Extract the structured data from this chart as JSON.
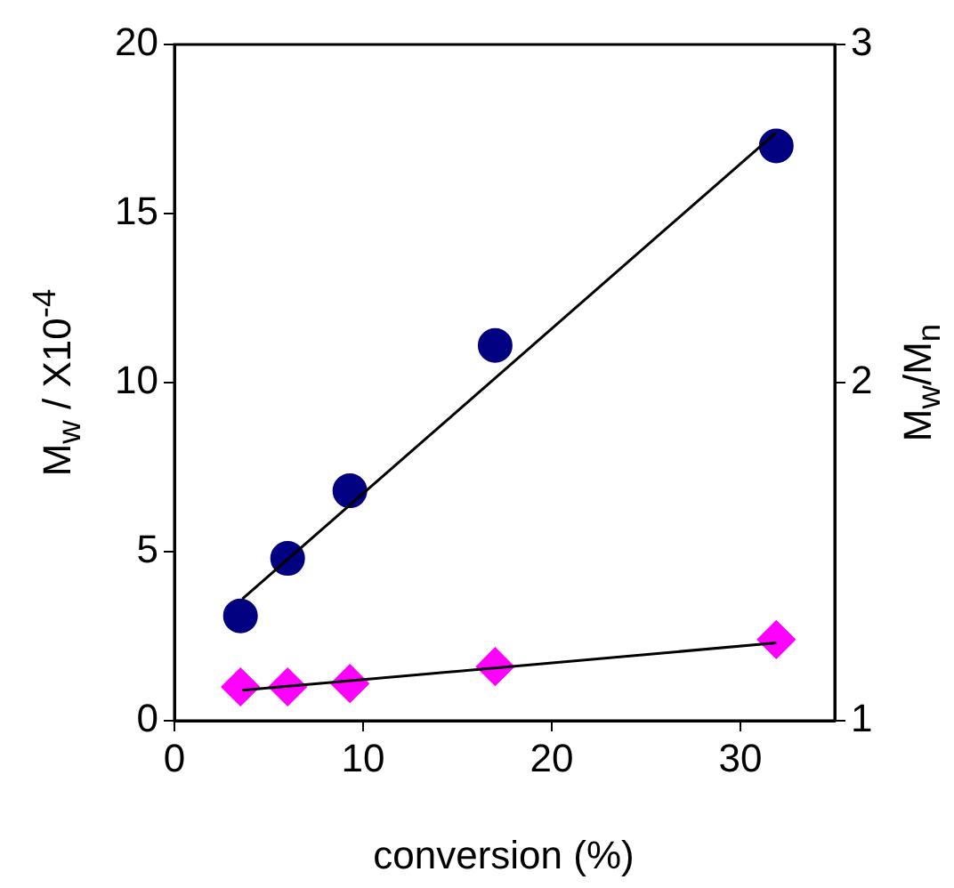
{
  "chart_data": {
    "type": "scatter",
    "xlabel": "conversion (%)",
    "ylabel": "M$_{w}$ / X10$^{-4}$",
    "y2label": "M$_{w}$/M$_{n}$",
    "xlim": [
      0,
      35
    ],
    "xticks": [
      0,
      10,
      20,
      30
    ],
    "ylim": [
      0,
      20
    ],
    "yticks": [
      0,
      5,
      10,
      15,
      20
    ],
    "y2lim": [
      1,
      3
    ],
    "y2ticks": [
      1,
      2,
      3
    ],
    "grid": false,
    "legend": false,
    "series": [
      {
        "type": "scatter",
        "marker": "circle",
        "color": "#000080",
        "x": [
          3.5,
          6.0,
          9.3,
          17.0,
          31.9
        ],
        "values": [
          3.1,
          4.8,
          6.8,
          11.1,
          17.0
        ]
      },
      {
        "type": "scatter",
        "marker": "diamond",
        "axis": "y2",
        "color": "#ff00ff",
        "x": [
          3.5,
          6.0,
          9.3,
          17.0,
          31.9
        ],
        "values": [
          1.1,
          1.1,
          1.11,
          1.16,
          1.24
        ]
      },
      {
        "type": "line",
        "marker": "none",
        "color": "#000000",
        "x": [
          3.6,
          31.9
        ],
        "values": [
          3.6,
          17.4
        ]
      },
      {
        "type": "line",
        "marker": "none",
        "axis": "y2",
        "color": "#000000",
        "x": [
          3.6,
          31.9
        ],
        "values": [
          1.09,
          1.23
        ]
      }
    ]
  }
}
